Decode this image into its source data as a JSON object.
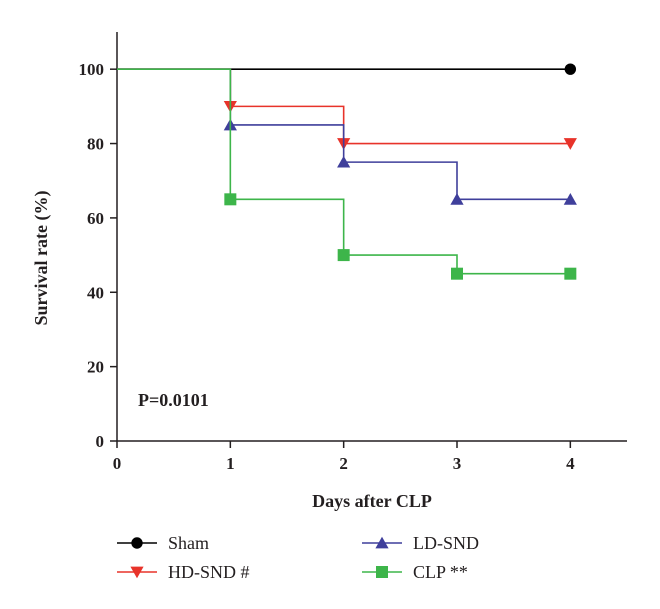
{
  "chart_data": {
    "type": "line",
    "step": true,
    "xlabel": "Days after CLP",
    "ylabel": "Survival rate (%)",
    "xlim": [
      0,
      4.5
    ],
    "ylim": [
      0,
      110
    ],
    "xticks": [
      0,
      1,
      2,
      3,
      4
    ],
    "yticks": [
      0,
      20,
      40,
      60,
      80,
      100
    ],
    "grid": false,
    "legend_position": "bottom",
    "annotation": "P=0.0101",
    "series": [
      {
        "name": "Sham",
        "color": "#000000",
        "marker": "circle",
        "x": [
          0,
          1,
          2,
          3,
          4
        ],
        "y": [
          100,
          100,
          100,
          100,
          100
        ],
        "marked_x": [
          4
        ]
      },
      {
        "name": "HD-SND #",
        "color": "#e8332a",
        "marker": "triangle-down",
        "x": [
          0,
          1,
          2,
          3,
          4
        ],
        "y": [
          100,
          90,
          80,
          80,
          80
        ],
        "marked_x": [
          1,
          2,
          4
        ]
      },
      {
        "name": "LD-SND",
        "color": "#3f3f9b",
        "marker": "triangle-up",
        "x": [
          0,
          1,
          2,
          3,
          4
        ],
        "y": [
          100,
          85,
          75,
          65,
          65
        ],
        "marked_x": [
          1,
          2,
          3,
          4
        ]
      },
      {
        "name": "CLP **",
        "color": "#3db54a",
        "marker": "square",
        "x": [
          0,
          1,
          2,
          3,
          4
        ],
        "y": [
          100,
          65,
          50,
          45,
          45
        ],
        "marked_x": [
          1,
          2,
          3,
          4
        ]
      }
    ]
  }
}
